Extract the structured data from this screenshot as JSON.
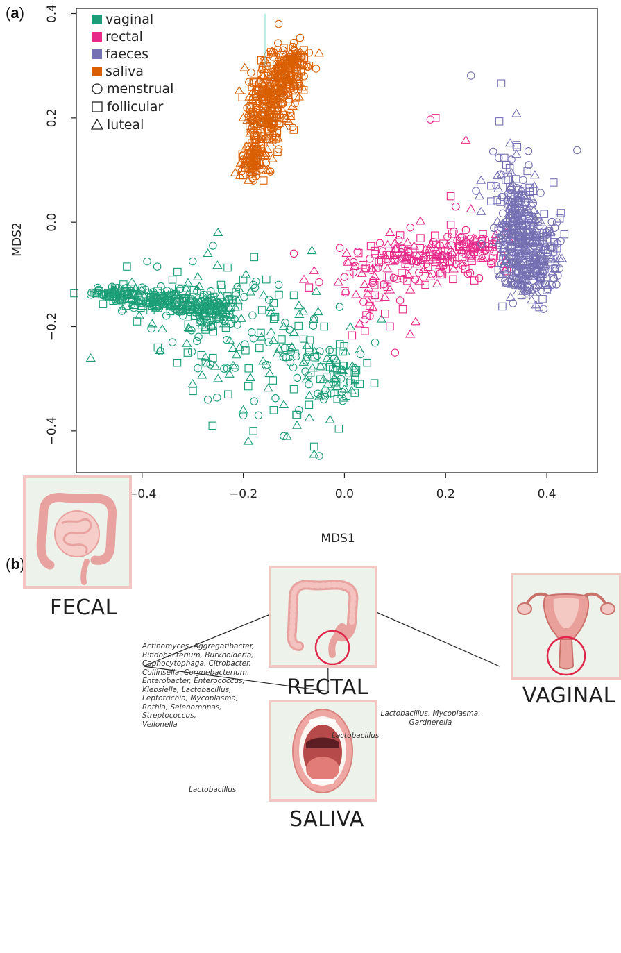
{
  "panel_a_label": "a",
  "panel_b_label": "b",
  "colors": {
    "vaginal": "#1b9e77",
    "rectal": "#e7298a",
    "faeces": "#7570b3",
    "saliva": "#d95f02",
    "organ_card_bg": "#edf2ea",
    "organ_card_border": "#f1c6c3",
    "highlight_circle": "#e0264a"
  },
  "chart_data": {
    "type": "scatter",
    "title": "",
    "xlabel": "MDS1",
    "ylabel": "MDS2",
    "xlim": [
      -0.53,
      0.5
    ],
    "ylim": [
      -0.48,
      0.41
    ],
    "xticks": [
      -0.4,
      -0.2,
      0.0,
      0.2,
      0.4
    ],
    "yticks": [
      -0.4,
      -0.2,
      0.0,
      0.2,
      0.4
    ],
    "xtick_labels": [
      "−0.4",
      "−0.2",
      "0.0",
      "0.2",
      "0.4"
    ],
    "ytick_labels": [
      "−0.4",
      "−0.2",
      "0.0",
      "0.2",
      "0.4"
    ],
    "grid": false,
    "legend_position": "top-left",
    "legend_colors": [
      {
        "label": "vaginal",
        "color": "#1b9e77"
      },
      {
        "label": "rectal",
        "color": "#e7298a"
      },
      {
        "label": "faeces",
        "color": "#7570b3"
      },
      {
        "label": "saliva",
        "color": "#d95f02"
      }
    ],
    "legend_shapes": [
      {
        "label": "menstrual",
        "shape": "circle"
      },
      {
        "label": "follicular",
        "shape": "square"
      },
      {
        "label": "luteal",
        "shape": "triangle"
      }
    ],
    "series": [
      {
        "name": "vaginal",
        "color": "#1b9e77",
        "clusters": [
          {
            "center": [
              -0.45,
              -0.136
            ],
            "spread": [
              0.025,
              0.006
            ],
            "count": 60
          },
          {
            "center": [
              -0.36,
              -0.15
            ],
            "spread": [
              0.05,
              0.012
            ],
            "count": 150
          },
          {
            "center": [
              -0.28,
              -0.17
            ],
            "spread": [
              0.03,
              0.022
            ],
            "count": 120
          },
          {
            "center": [
              -0.22,
              -0.21
            ],
            "spread": [
              0.07,
              0.06
            ],
            "count": 90
          },
          {
            "center": [
              -0.08,
              -0.26
            ],
            "spread": [
              0.06,
              0.065
            ],
            "count": 70
          },
          {
            "center": [
              -0.01,
              -0.3
            ],
            "spread": [
              0.025,
              0.03
            ],
            "count": 40
          }
        ],
        "points": [
          [
            -0.5,
            -0.135
          ],
          [
            -0.49,
            -0.136
          ],
          [
            -0.42,
            -0.115
          ],
          [
            -0.39,
            -0.075
          ],
          [
            -0.43,
            -0.085
          ],
          [
            -0.25,
            -0.02
          ],
          [
            -0.3,
            -0.075
          ],
          [
            -0.33,
            -0.095
          ],
          [
            -0.27,
            -0.06
          ],
          [
            -0.37,
            -0.085
          ],
          [
            -0.34,
            -0.11
          ],
          [
            -0.29,
            -0.105
          ],
          [
            -0.26,
            -0.045
          ],
          [
            -0.2,
            -0.11
          ],
          [
            -0.38,
            -0.195
          ],
          [
            -0.44,
            -0.17
          ],
          [
            -0.41,
            -0.19
          ],
          [
            -0.36,
            -0.205
          ],
          [
            -0.34,
            -0.23
          ],
          [
            -0.31,
            -0.25
          ],
          [
            -0.3,
            -0.31
          ],
          [
            -0.27,
            -0.34
          ],
          [
            -0.23,
            -0.33
          ],
          [
            -0.2,
            -0.36
          ],
          [
            -0.17,
            -0.37
          ],
          [
            -0.14,
            -0.36
          ],
          [
            -0.12,
            -0.35
          ],
          [
            -0.2,
            -0.37
          ],
          [
            -0.18,
            -0.4
          ],
          [
            -0.19,
            -0.42
          ],
          [
            -0.12,
            -0.41
          ],
          [
            -0.06,
            -0.43
          ],
          [
            -0.06,
            -0.445
          ],
          [
            -0.05,
            -0.448
          ],
          [
            -0.07,
            -0.35
          ],
          [
            -0.05,
            -0.335
          ],
          [
            -0.09,
            -0.36
          ],
          [
            -0.1,
            -0.32
          ],
          [
            0.0,
            -0.32
          ],
          [
            0.01,
            -0.305
          ],
          [
            0.03,
            -0.31
          ],
          [
            0.03,
            -0.245
          ],
          [
            0.02,
            -0.28
          ],
          [
            -0.02,
            -0.33
          ],
          [
            -0.03,
            -0.27
          ],
          [
            -0.06,
            -0.185
          ],
          [
            -0.04,
            -0.2
          ],
          [
            -0.09,
            -0.16
          ],
          [
            -0.13,
            -0.12
          ],
          [
            -0.14,
            -0.155
          ],
          [
            -0.16,
            -0.14
          ],
          [
            -0.18,
            -0.12
          ],
          [
            -0.1,
            -0.14
          ],
          [
            -0.12,
            -0.2
          ],
          [
            -0.15,
            -0.23
          ],
          [
            -0.07,
            -0.24
          ],
          [
            -0.25,
            -0.3
          ],
          [
            -0.29,
            -0.28
          ],
          [
            -0.26,
            -0.26
          ],
          [
            -0.22,
            -0.275
          ]
        ]
      },
      {
        "name": "rectal",
        "color": "#e7298a",
        "clusters": [
          {
            "center": [
              0.15,
              -0.07
            ],
            "spread": [
              0.08,
              0.015
            ],
            "count": 120
          },
          {
            "center": [
              0.24,
              -0.045
            ],
            "spread": [
              0.04,
              0.012
            ],
            "count": 60
          },
          {
            "center": [
              0.07,
              -0.12
            ],
            "spread": [
              0.05,
              0.04
            ],
            "count": 40
          }
        ],
        "points": [
          [
            0.17,
            0.197
          ],
          [
            0.18,
            0.2
          ],
          [
            0.24,
            0.157
          ],
          [
            0.22,
            0.03
          ],
          [
            0.21,
            0.05
          ],
          [
            0.25,
            0.025
          ],
          [
            0.24,
            -0.015
          ],
          [
            0.21,
            -0.005
          ],
          [
            0.15,
            0.002
          ],
          [
            0.13,
            -0.01
          ],
          [
            0.11,
            -0.025
          ],
          [
            0.09,
            -0.02
          ],
          [
            0.07,
            -0.04
          ],
          [
            0.06,
            -0.055
          ],
          [
            0.1,
            -0.04
          ],
          [
            0.05,
            -0.07
          ],
          [
            0.04,
            -0.09
          ],
          [
            0.02,
            -0.085
          ],
          [
            0.0,
            -0.105
          ],
          [
            0.01,
            -0.1
          ],
          [
            -0.06,
            -0.093
          ],
          [
            -0.05,
            -0.115
          ],
          [
            -0.07,
            -0.125
          ],
          [
            -0.08,
            -0.11
          ],
          [
            -0.1,
            -0.06
          ],
          [
            0.05,
            -0.16
          ],
          [
            0.03,
            -0.195
          ],
          [
            0.05,
            -0.18
          ],
          [
            0.08,
            -0.175
          ],
          [
            0.13,
            -0.215
          ],
          [
            0.1,
            -0.25
          ],
          [
            0.06,
            -0.14
          ],
          [
            0.09,
            -0.13
          ],
          [
            0.14,
            -0.11
          ],
          [
            0.16,
            -0.12
          ],
          [
            0.13,
            -0.13
          ],
          [
            0.11,
            -0.15
          ],
          [
            0.2,
            -0.09
          ],
          [
            0.27,
            -0.07
          ],
          [
            0.29,
            -0.075
          ],
          [
            0.31,
            -0.065
          ],
          [
            0.3,
            -0.035
          ],
          [
            0.32,
            -0.02
          ],
          [
            0.19,
            -0.1
          ],
          [
            0.17,
            -0.105
          ]
        ]
      },
      {
        "name": "faeces",
        "color": "#7570b3",
        "clusters": [
          {
            "center": [
              0.34,
              0.0
            ],
            "spread": [
              0.022,
              0.055
            ],
            "count": 220
          },
          {
            "center": [
              0.38,
              -0.06
            ],
            "spread": [
              0.025,
              0.04
            ],
            "count": 180
          },
          {
            "center": [
              0.35,
              -0.1
            ],
            "spread": [
              0.025,
              0.022
            ],
            "count": 60
          }
        ],
        "points": [
          [
            0.25,
            0.281
          ],
          [
            0.31,
            0.266
          ],
          [
            0.34,
            0.208
          ],
          [
            0.46,
            0.138
          ],
          [
            0.34,
            0.148
          ],
          [
            0.34,
            0.13
          ],
          [
            0.33,
            0.12
          ],
          [
            0.32,
            0.11
          ],
          [
            0.31,
            0.09
          ],
          [
            0.3,
            0.07
          ],
          [
            0.29,
            0.07
          ],
          [
            0.27,
            0.08
          ],
          [
            0.26,
            0.06
          ],
          [
            0.29,
            0.04
          ],
          [
            0.27,
            0.02
          ],
          [
            0.42,
            0.0
          ],
          [
            0.42,
            -0.05
          ],
          [
            0.43,
            -0.07
          ],
          [
            0.41,
            -0.12
          ],
          [
            0.4,
            -0.13
          ],
          [
            0.37,
            -0.13
          ],
          [
            0.36,
            -0.135
          ],
          [
            0.35,
            -0.14
          ],
          [
            0.34,
            -0.08
          ],
          [
            0.33,
            -0.1
          ],
          [
            0.32,
            -0.07
          ],
          [
            0.32,
            -0.03
          ]
        ]
      },
      {
        "name": "saliva",
        "color": "#d95f02",
        "clusters": [
          {
            "center": [
              -0.18,
              0.12
            ],
            "spread": [
              0.012,
              0.022
            ],
            "count": 90
          },
          {
            "center": [
              -0.155,
              0.21
            ],
            "spread": [
              0.02,
              0.04
            ],
            "count": 200
          },
          {
            "center": [
              -0.125,
              0.27
            ],
            "spread": [
              0.018,
              0.03
            ],
            "count": 160
          },
          {
            "center": [
              -0.1,
              0.31
            ],
            "spread": [
              0.012,
              0.015
            ],
            "count": 60
          }
        ],
        "points": [
          [
            -0.13,
            0.38
          ],
          [
            -0.08,
            0.33
          ],
          [
            -0.05,
            0.324
          ],
          [
            -0.1,
            0.344
          ],
          [
            -0.12,
            0.334
          ],
          [
            -0.14,
            0.325
          ],
          [
            -0.16,
            0.31
          ],
          [
            -0.18,
            0.27
          ],
          [
            -0.2,
            0.2
          ],
          [
            -0.2,
            0.12
          ],
          [
            -0.2,
            0.09
          ],
          [
            -0.19,
            0.08
          ],
          [
            -0.18,
            0.08
          ],
          [
            -0.16,
            0.08
          ],
          [
            -0.15,
            0.1
          ],
          [
            -0.13,
            0.14
          ],
          [
            -0.12,
            0.2
          ],
          [
            -0.09,
            0.24
          ],
          [
            -0.08,
            0.28
          ],
          [
            -0.07,
            0.3
          ]
        ]
      }
    ]
  },
  "panel_b": {
    "sites": {
      "rectal": "RECTAL",
      "fecal": "FECAL",
      "vaginal": "VAGINAL",
      "saliva": "SALIVA"
    },
    "edges": {
      "fecal_rectal": [
        "Actinomyces, Aggregatibacter,",
        "Bifidobacterium, Burkholderia,",
        "Capnocytophaga, Citrobacter,",
        "Collinsella, Corynebacterium,",
        "Enterobacter, Enterococcus,",
        "Klebsiella, Lactobacillus,",
        "Leptotrichia, Mycoplasma,",
        "Rothia, Selenomonas,",
        "Streptococcus,",
        "Veilonella"
      ],
      "rectal_vaginal": [
        "Lactobacillus, Mycoplasma,",
        "Gardnerella"
      ],
      "rectal_saliva": "Lactobacillus",
      "fecal_saliva": "Lactobacillus"
    }
  }
}
